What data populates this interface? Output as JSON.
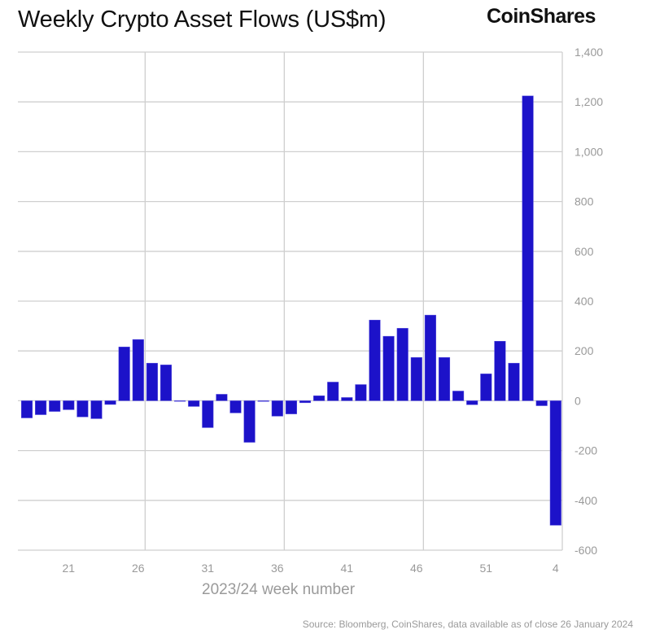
{
  "title": "Weekly Crypto Asset Flows (US$m)",
  "logo": "CoinShares",
  "source": "Source: Bloomberg, CoinShares, data available as of close 26 January 2024",
  "chart_data": {
    "type": "bar",
    "title": "Weekly Crypto Asset Flows (US$m)",
    "xlabel": "2023/24 week number",
    "ylabel": "US$m",
    "ylim": [
      -600,
      1400
    ],
    "yticks": [
      1400,
      1200,
      1000,
      800,
      600,
      400,
      200,
      0,
      -200,
      -400,
      -600
    ],
    "ytick_labels": [
      "1,400",
      "1,200",
      "1,000",
      "800",
      "600",
      "400",
      "200",
      "0",
      "-200",
      "-400",
      "-600"
    ],
    "xtick_labels": [
      "21",
      "26",
      "31",
      "36",
      "41",
      "46",
      "51",
      "4"
    ],
    "categories": [
      "18",
      "19",
      "20",
      "21",
      "22",
      "23",
      "24",
      "25",
      "26",
      "27",
      "28",
      "29",
      "30",
      "31",
      "32",
      "33",
      "34",
      "35",
      "36",
      "37",
      "38",
      "39",
      "40",
      "41",
      "42",
      "43",
      "44",
      "45",
      "46",
      "47",
      "48",
      "49",
      "50",
      "51",
      "52",
      "1",
      "2",
      "3",
      "4"
    ],
    "values": [
      -69,
      -56,
      -43,
      -36,
      -65,
      -72,
      -15,
      216,
      246,
      151,
      144,
      0,
      -23,
      -108,
      26,
      -49,
      -167,
      -3,
      -62,
      -53,
      -8,
      20,
      75,
      13,
      65,
      324,
      259,
      291,
      174,
      344,
      174,
      39,
      -16,
      108,
      239,
      151,
      1224,
      -20,
      -500
    ],
    "color": "#1c12c9",
    "grid": true,
    "y_axis_position": "right"
  }
}
